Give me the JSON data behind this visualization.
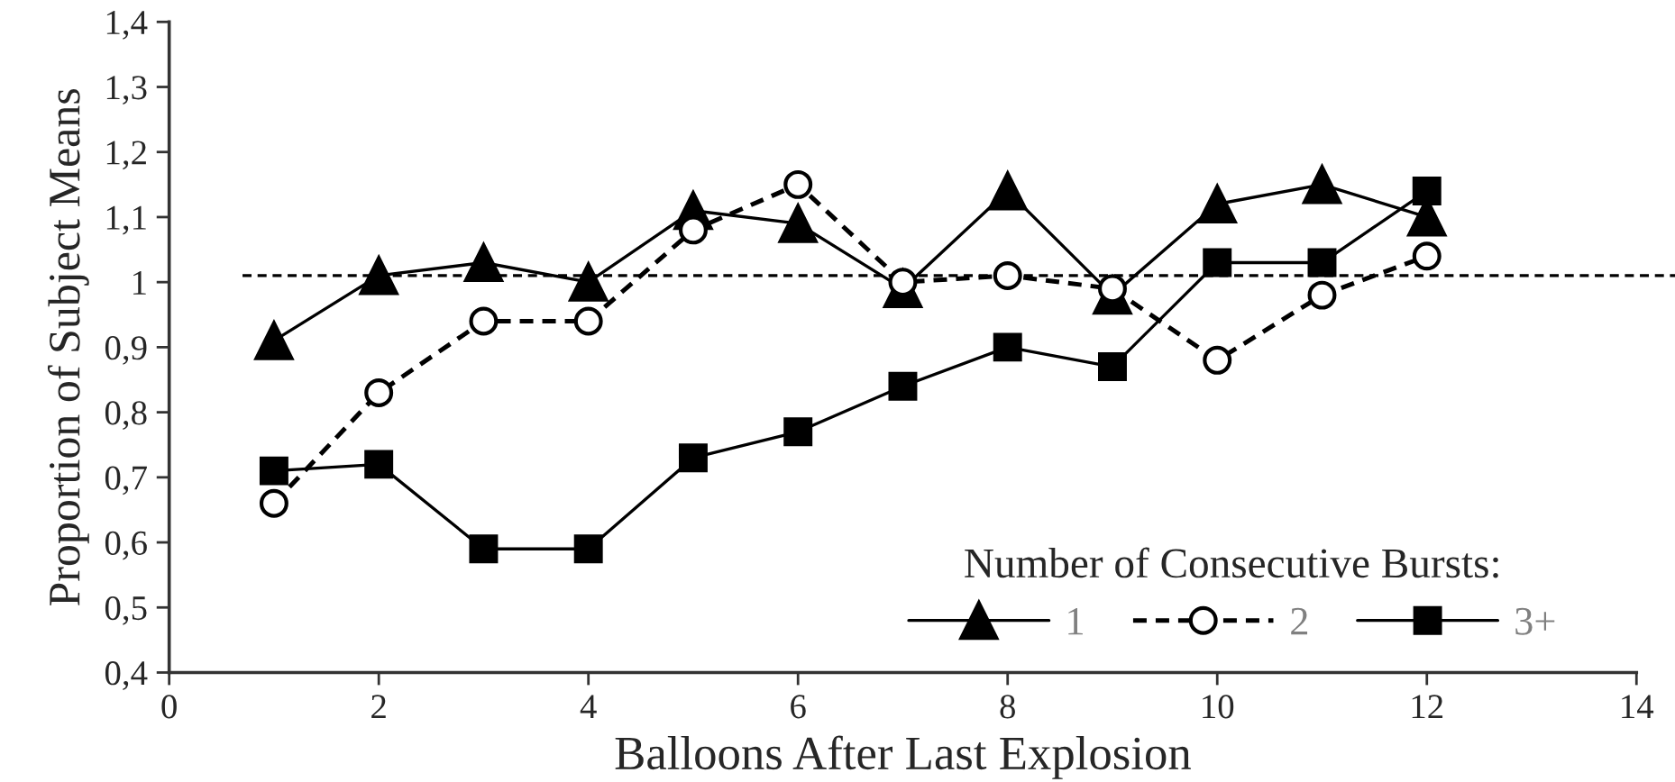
{
  "chart_data": {
    "type": "line",
    "xlabel": "Balloons After Last Explosion",
    "ylabel": "Proportion of Subject Means",
    "legend_title": "Number of Consecutive Bursts:",
    "legend": "bottom right",
    "grid": false,
    "x": [
      1,
      2,
      3,
      4,
      5,
      6,
      7,
      8,
      9,
      10,
      11,
      12
    ],
    "xlim": [
      0,
      14
    ],
    "xticks": [
      0,
      2,
      4,
      6,
      8,
      10,
      12,
      14
    ],
    "ylim": [
      0.4,
      1.4
    ],
    "yticks": [
      {
        "value": 0.4,
        "label": "0,4"
      },
      {
        "value": 0.5,
        "label": "0,5"
      },
      {
        "value": 0.6,
        "label": "0,6"
      },
      {
        "value": 0.7,
        "label": "0,7"
      },
      {
        "value": 0.8,
        "label": "0,8"
      },
      {
        "value": 0.9,
        "label": "0,9"
      },
      {
        "value": 1.0,
        "label": "1"
      },
      {
        "value": 1.1,
        "label": "1,1"
      },
      {
        "value": 1.2,
        "label": "1,2"
      },
      {
        "value": 1.3,
        "label": "1,3"
      },
      {
        "value": 1.4,
        "label": "1,4"
      }
    ],
    "ref_lines": [
      {
        "axis": "y",
        "value": 1.01,
        "line_style": "dashed",
        "color": "#000000"
      }
    ],
    "series": [
      {
        "name": "1",
        "color": "#000000",
        "marker": "triangle",
        "line_style": "solid",
        "values": [
          0.91,
          1.01,
          1.03,
          1.0,
          1.11,
          1.09,
          0.99,
          1.14,
          0.98,
          1.12,
          1.15,
          1.1
        ]
      },
      {
        "name": "2",
        "color": "#000000",
        "marker": "circle",
        "line_style": "dashed",
        "values": [
          0.66,
          0.83,
          0.94,
          0.94,
          1.08,
          1.15,
          1.0,
          1.01,
          0.99,
          0.88,
          0.98,
          1.04
        ]
      },
      {
        "name": "3+",
        "color": "#000000",
        "marker": "square",
        "line_style": "solid",
        "values": [
          0.71,
          0.72,
          0.59,
          0.59,
          0.73,
          0.77,
          0.84,
          0.9,
          0.87,
          1.03,
          1.03,
          1.14
        ]
      }
    ]
  }
}
